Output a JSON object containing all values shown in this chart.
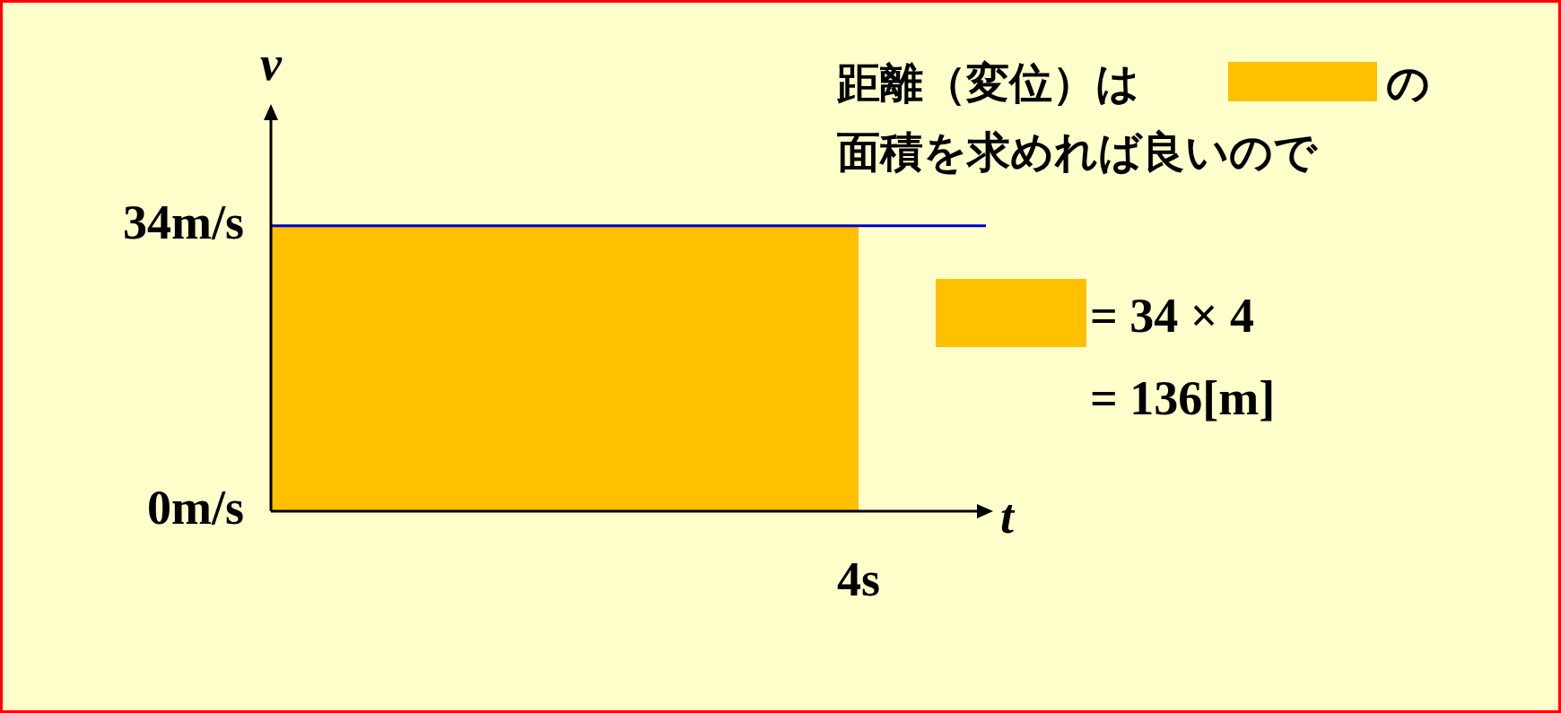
{
  "chart_data": {
    "type": "line",
    "xlabel": "t",
    "ylabel": "v",
    "categories": [
      null,
      "4s"
    ],
    "ylim": [
      0,
      47
    ],
    "yticks": [
      {
        "value": 0,
        "label": "0m/s"
      },
      {
        "value": 34,
        "label": "34m/s"
      }
    ],
    "bands": [
      {
        "axis": "y",
        "from": 0,
        "to": 34,
        "color": "#ffc000"
      }
    ],
    "ref_lines": [
      {
        "axis": "y",
        "value": 34,
        "color": "#0000cc"
      }
    ],
    "legend": false,
    "annotations": [
      "距離（変位）は",
      "の",
      "面積を求めれば良いので",
      "= 34 × 4",
      "= 136[m]"
    ]
  }
}
